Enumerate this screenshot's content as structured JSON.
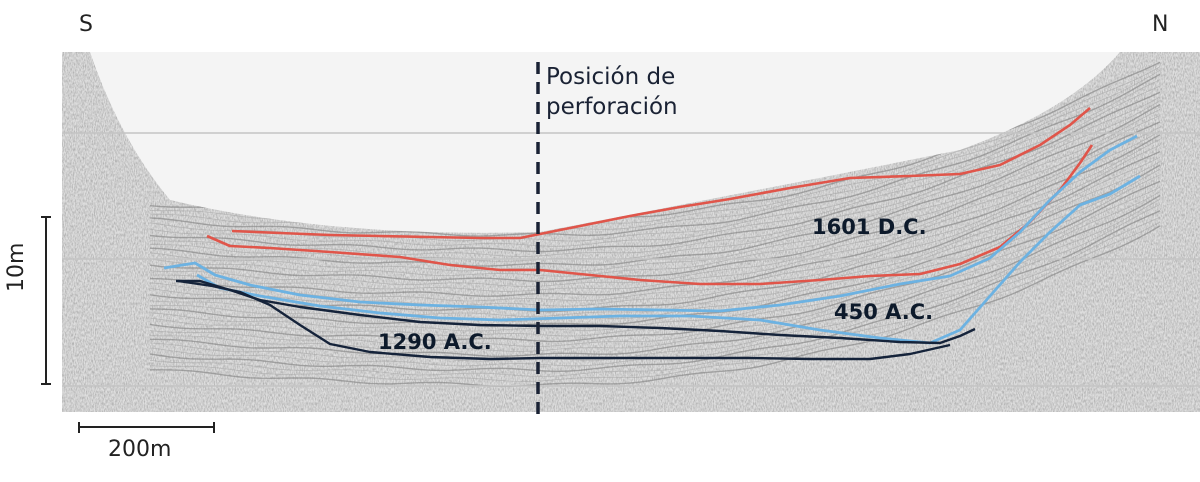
{
  "directions": {
    "south": "S",
    "north": "N"
  },
  "borehole": {
    "line1": "Posición de",
    "line2": "perforación"
  },
  "horizons": [
    {
      "label": "1601 D.C.",
      "color": "#e0554a"
    },
    {
      "label": "450 A.C.",
      "color": "#6cb2e2"
    },
    {
      "label": "1290 A.C.",
      "color": "#15233a"
    }
  ],
  "scale": {
    "vertical": "10m",
    "horizontal": "200m"
  },
  "colors": {
    "background_texture": "#d9d9d9",
    "borehole_line": "#1a2234"
  }
}
